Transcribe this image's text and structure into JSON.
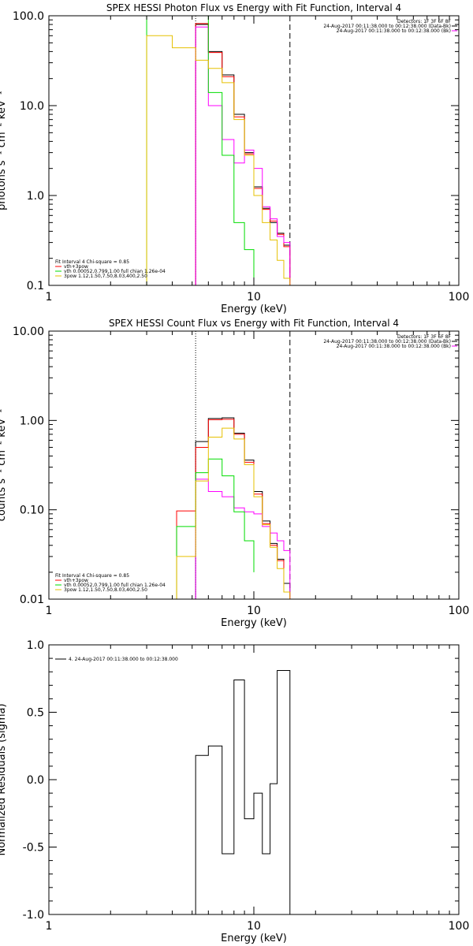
{
  "chart_data": [
    {
      "type": "line",
      "title": "SPEX HESSI Photon Flux vs Energy with Fit Function, Interval 4",
      "xlabel": "Energy (keV)",
      "ylabel": "photons s⁻¹ cm⁻² keV⁻¹",
      "xscale": "log",
      "yscale": "log",
      "xlim": [
        1,
        100
      ],
      "ylim": [
        0.1,
        100
      ],
      "x_ticks": [
        "1",
        "10",
        "100"
      ],
      "y_ticks": [
        "0.1",
        "1.0",
        "10.0",
        "100.0"
      ],
      "vlines": [
        {
          "x": 5.2,
          "style": "dotted"
        },
        {
          "x": 15.0,
          "style": "dashed"
        }
      ],
      "header_text": [
        "Detectors: 1F 3F 6F 8F",
        "24-Aug-2017 00:11:38.000 to 00:12:38.000 (Data-Bk)",
        "24-Aug-2017 00:11:38.000 to 00:12:38.000 (Bk)"
      ],
      "legend_text": [
        "Fit Interval 4   Chi-square = 0.85",
        "vth+3pow",
        "vth 0.00052,0.799,1.00  full chian 1.26e-04",
        "3pow 1.12,1.50,7.50,8.03,400,2.50"
      ],
      "series": [
        {
          "name": "Data-Bk",
          "color": "#000000",
          "edges": [
            5.2,
            6.0,
            7.0,
            8.0,
            9.0,
            10.0,
            11.0,
            12.0,
            13.0,
            14.0,
            15.0
          ],
          "values": [
            80,
            40,
            22,
            8,
            3,
            1.25,
            0.72,
            0.5,
            0.38,
            0.28
          ]
        },
        {
          "name": "vth+3pow",
          "color": "#ff0000",
          "edges": [
            5.2,
            6.0,
            7.0,
            8.0,
            9.0,
            10.0,
            11.0,
            12.0,
            13.0,
            14.0,
            15.0
          ],
          "values": [
            82,
            39,
            21,
            7.5,
            2.9,
            1.2,
            0.7,
            0.52,
            0.37,
            0.27
          ]
        },
        {
          "name": "Bk",
          "color": "#ff00ff",
          "edges": [
            5.2,
            6.0,
            7.0,
            8.0,
            9.0,
            10.0,
            11.0,
            12.0,
            13.0,
            14.0,
            15.0
          ],
          "values": [
            75,
            10,
            4.2,
            2.3,
            3.2,
            2.0,
            0.75,
            0.55,
            0.35,
            0.3
          ]
        },
        {
          "name": "vth",
          "color": "#00dd00",
          "edges": [
            3.0,
            4.0,
            5.2,
            6.0,
            7.0,
            8.0,
            9.0,
            10.0
          ],
          "values": [
            100,
            100,
            100,
            14,
            2.8,
            0.5,
            0.25,
            0.08
          ]
        },
        {
          "name": "3pow",
          "color": "#e6c000",
          "edges": [
            3.0,
            4.0,
            5.2,
            6.0,
            7.0,
            8.0,
            9.0,
            10.0,
            11.0,
            12.0,
            13.0,
            14.0,
            15.0
          ],
          "values": [
            60,
            44,
            32,
            26,
            18,
            7,
            2.8,
            1.0,
            0.5,
            0.32,
            0.19,
            0.12
          ]
        }
      ]
    },
    {
      "type": "line",
      "title": "SPEX HESSI Count Flux vs Energy with Fit Function, Interval 4",
      "xlabel": "Energy (keV)",
      "ylabel": "counts s⁻¹ cm⁻² keV⁻¹",
      "xscale": "log",
      "yscale": "log",
      "xlim": [
        1,
        100
      ],
      "ylim": [
        0.01,
        10
      ],
      "x_ticks": [
        "1",
        "10",
        "100"
      ],
      "y_ticks": [
        "0.01",
        "0.10",
        "1.00",
        "10.00"
      ],
      "vlines": [
        {
          "x": 5.2,
          "style": "dotted"
        },
        {
          "x": 15.0,
          "style": "dashed"
        }
      ],
      "header_text": [
        "Detectors: 1F 3F 6F 8F",
        "24-Aug-2017 00:11:38.000 to 00:12:38.000 (Data-Bk)",
        "24-Aug-2017 00:11:38.000 to 00:12:38.000 (Bk)"
      ],
      "legend_text": [
        "Fit Interval 4   Chi-square = 0.85",
        "vth+3pow",
        "vth 0.00052,0.799,1.00  full chian 1.26e-04",
        "3pow 1.12,1.50,7.50,8.03,400,2.50"
      ],
      "series": [
        {
          "name": "Data-Bk",
          "color": "#000000",
          "edges": [
            5.2,
            6.0,
            7.0,
            8.0,
            9.0,
            10.0,
            11.0,
            12.0,
            13.0,
            14.0,
            15.0
          ],
          "values": [
            0.58,
            1.05,
            1.07,
            0.72,
            0.36,
            0.16,
            0.075,
            0.042,
            0.028,
            0.015
          ]
        },
        {
          "name": "vth+3pow",
          "color": "#ff0000",
          "edges": [
            4.2,
            5.2,
            6.0,
            7.0,
            8.0,
            9.0,
            10.0,
            11.0,
            12.0,
            13.0,
            14.0,
            15.0
          ],
          "values": [
            0.097,
            0.5,
            1.02,
            1.03,
            0.7,
            0.34,
            0.15,
            0.07,
            0.04,
            0.027,
            0.012
          ]
        },
        {
          "name": "Bk",
          "color": "#ff00ff",
          "edges": [
            5.2,
            6.0,
            7.0,
            8.0,
            9.0,
            10.0,
            11.0,
            12.0,
            13.0,
            14.0,
            15.0
          ],
          "values": [
            0.22,
            0.16,
            0.14,
            0.105,
            0.095,
            0.09,
            0.065,
            0.055,
            0.045,
            0.035
          ]
        },
        {
          "name": "vth",
          "color": "#00dd00",
          "edges": [
            4.2,
            5.2,
            6.0,
            7.0,
            8.0,
            9.0,
            10.0
          ],
          "values": [
            0.065,
            0.26,
            0.37,
            0.24,
            0.095,
            0.045,
            0.02
          ]
        },
        {
          "name": "3pow",
          "color": "#e6c000",
          "edges": [
            4.2,
            5.2,
            6.0,
            7.0,
            8.0,
            9.0,
            10.0,
            11.0,
            12.0,
            13.0,
            14.0,
            15.0
          ],
          "values": [
            0.03,
            0.21,
            0.65,
            0.82,
            0.62,
            0.32,
            0.14,
            0.068,
            0.038,
            0.022,
            0.012
          ]
        }
      ]
    },
    {
      "type": "line",
      "title": "",
      "xlabel": "Energy (keV)",
      "ylabel": "Normalized Residuals (sigma)",
      "xscale": "log",
      "yscale": "linear",
      "xlim": [
        1,
        100
      ],
      "ylim": [
        -1.0,
        1.0
      ],
      "x_ticks": [
        "1",
        "10",
        "100"
      ],
      "y_ticks": [
        "-1.0",
        "-0.5",
        "0.0",
        "0.5",
        "1.0"
      ],
      "legend_text": [
        "4. 24-Aug-2017 00:11:38.000 to 00:12:38.000"
      ],
      "series": [
        {
          "name": "4. 24-Aug-2017 00:11:38.000 to 00:12:38.000",
          "color": "#000000",
          "edges": [
            5.2,
            6.0,
            7.0,
            8.0,
            9.0,
            10.0,
            11.0,
            12.0,
            13.0,
            14.0,
            15.0
          ],
          "values": [
            0.18,
            0.25,
            -0.55,
            0.74,
            -0.29,
            -0.1,
            -0.55,
            -0.03,
            0.81,
            0.81
          ]
        }
      ]
    }
  ]
}
